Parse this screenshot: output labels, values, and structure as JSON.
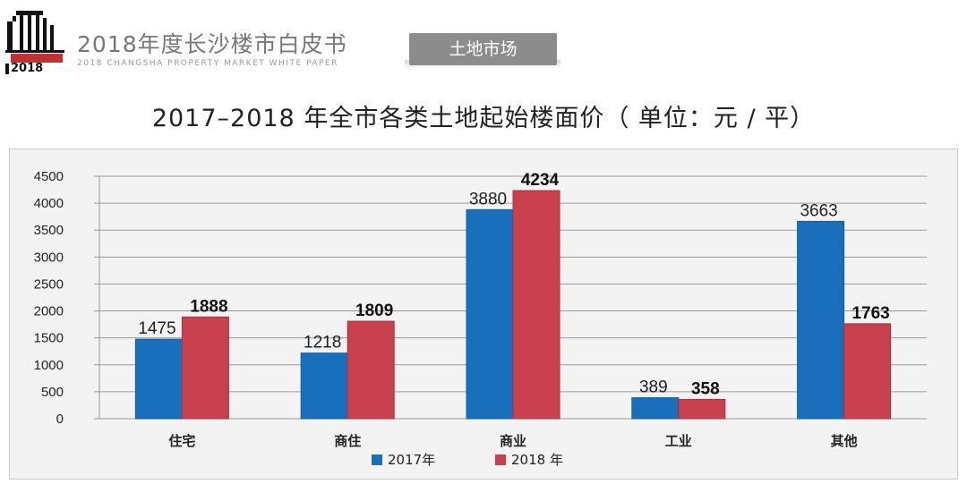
{
  "header": {
    "title": "2018年度长沙楼市白皮书",
    "subtitle": "2018 CHANGSHA PROPERTY MARKET WHITE PAPER",
    "logo_year": "2018",
    "section_tab": "土地市场"
  },
  "colors": {
    "series_2017": "#1a6fbd",
    "series_2018": "#c9404f",
    "plot_bg": "#f3f3f3",
    "tab_bg": "#8c8c8c",
    "logo_accent": "#c0312f"
  },
  "chart_data": {
    "type": "bar",
    "title": "2017–2018 年全市各类土地起始楼面价（ 单位：元 / 平）",
    "categories": [
      "住宅",
      "商住",
      "商业",
      "工业",
      "其他"
    ],
    "series": [
      {
        "name": "2017年",
        "values": [
          1475,
          1218,
          3880,
          389,
          3663
        ]
      },
      {
        "name": "2018 年",
        "values": [
          1888,
          1809,
          4234,
          358,
          1763
        ]
      }
    ],
    "y_ticks": [
      0,
      500,
      1000,
      1500,
      2000,
      2500,
      3000,
      3500,
      4000,
      4500
    ],
    "ylim": [
      0,
      4500
    ],
    "xlabel": "",
    "ylabel": "",
    "grid": true,
    "legend_position": "bottom"
  }
}
